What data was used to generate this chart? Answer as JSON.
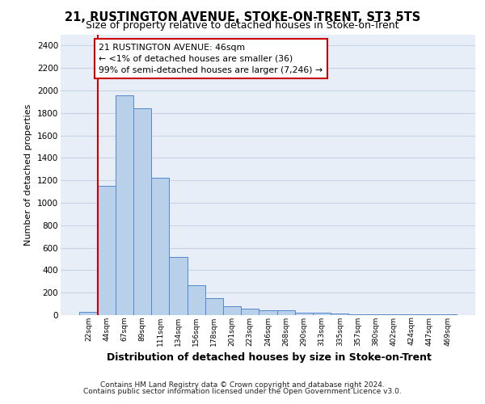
{
  "title1": "21, RUSTINGTON AVENUE, STOKE-ON-TRENT, ST3 5TS",
  "title2": "Size of property relative to detached houses in Stoke-on-Trent",
  "xlabel": "Distribution of detached houses by size in Stoke-on-Trent",
  "ylabel": "Number of detached properties",
  "annotation_line1": "21 RUSTINGTON AVENUE: 46sqm",
  "annotation_line2": "← <1% of detached houses are smaller (36)",
  "annotation_line3": "99% of semi-detached houses are larger (7,246) →",
  "footer1": "Contains HM Land Registry data © Crown copyright and database right 2024.",
  "footer2": "Contains public sector information licensed under the Open Government Licence v3.0.",
  "categories": [
    "22sqm",
    "44sqm",
    "67sqm",
    "89sqm",
    "111sqm",
    "134sqm",
    "156sqm",
    "178sqm",
    "201sqm",
    "223sqm",
    "246sqm",
    "268sqm",
    "290sqm",
    "313sqm",
    "335sqm",
    "357sqm",
    "380sqm",
    "402sqm",
    "424sqm",
    "447sqm",
    "469sqm"
  ],
  "values": [
    30,
    1150,
    1960,
    1840,
    1220,
    520,
    265,
    150,
    80,
    55,
    45,
    40,
    18,
    20,
    12,
    5,
    5,
    5,
    5,
    5,
    5
  ],
  "bar_color": "#b8d0ea",
  "bar_edge_color": "#5588cc",
  "highlight_line_color": "#cc0000",
  "grid_color": "#c8d4e4",
  "background_color": "#e8eef8",
  "ylim_max": 2500,
  "yticks": [
    0,
    200,
    400,
    600,
    800,
    1000,
    1200,
    1400,
    1600,
    1800,
    2000,
    2200,
    2400
  ]
}
